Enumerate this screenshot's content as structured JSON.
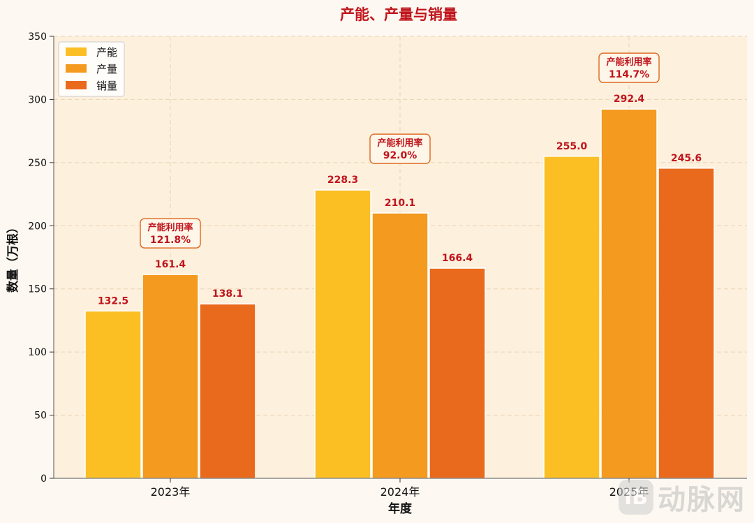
{
  "chart_data": {
    "type": "bar",
    "title": "产能、产量与销量",
    "xlabel": "年度",
    "ylabel": "数量（万根）",
    "categories": [
      "2023年",
      "2024年",
      "2025年"
    ],
    "ylim": [
      0,
      350
    ],
    "yticks": [
      0,
      50,
      100,
      150,
      200,
      250,
      300,
      350
    ],
    "grid": true,
    "legend_position": "top-left",
    "series": [
      {
        "name": "产能",
        "values": [
          132.5,
          228.3,
          255.0
        ],
        "labels": [
          "132.5",
          "228.3",
          "255.0"
        ],
        "color": "#fbbf24"
      },
      {
        "name": "产量",
        "values": [
          161.4,
          210.1,
          292.4
        ],
        "labels": [
          "161.4",
          "210.1",
          "292.4"
        ],
        "color": "#f39a1f"
      },
      {
        "name": "销量",
        "values": [
          138.1,
          166.4,
          245.6
        ],
        "labels": [
          "138.1",
          "166.4",
          "245.6"
        ],
        "color": "#e96a1c"
      }
    ],
    "annotations": [
      {
        "label": "产能利用率",
        "value": "121.8%"
      },
      {
        "label": "产能利用率",
        "value": "92.0%"
      },
      {
        "label": "产能利用率",
        "value": "114.7%"
      }
    ],
    "title_color": "#c0151c",
    "label_color": "#c0151c",
    "plot_bg": "#fdf0dd"
  },
  "watermark": {
    "badge": "IB",
    "text": "动脉网"
  }
}
